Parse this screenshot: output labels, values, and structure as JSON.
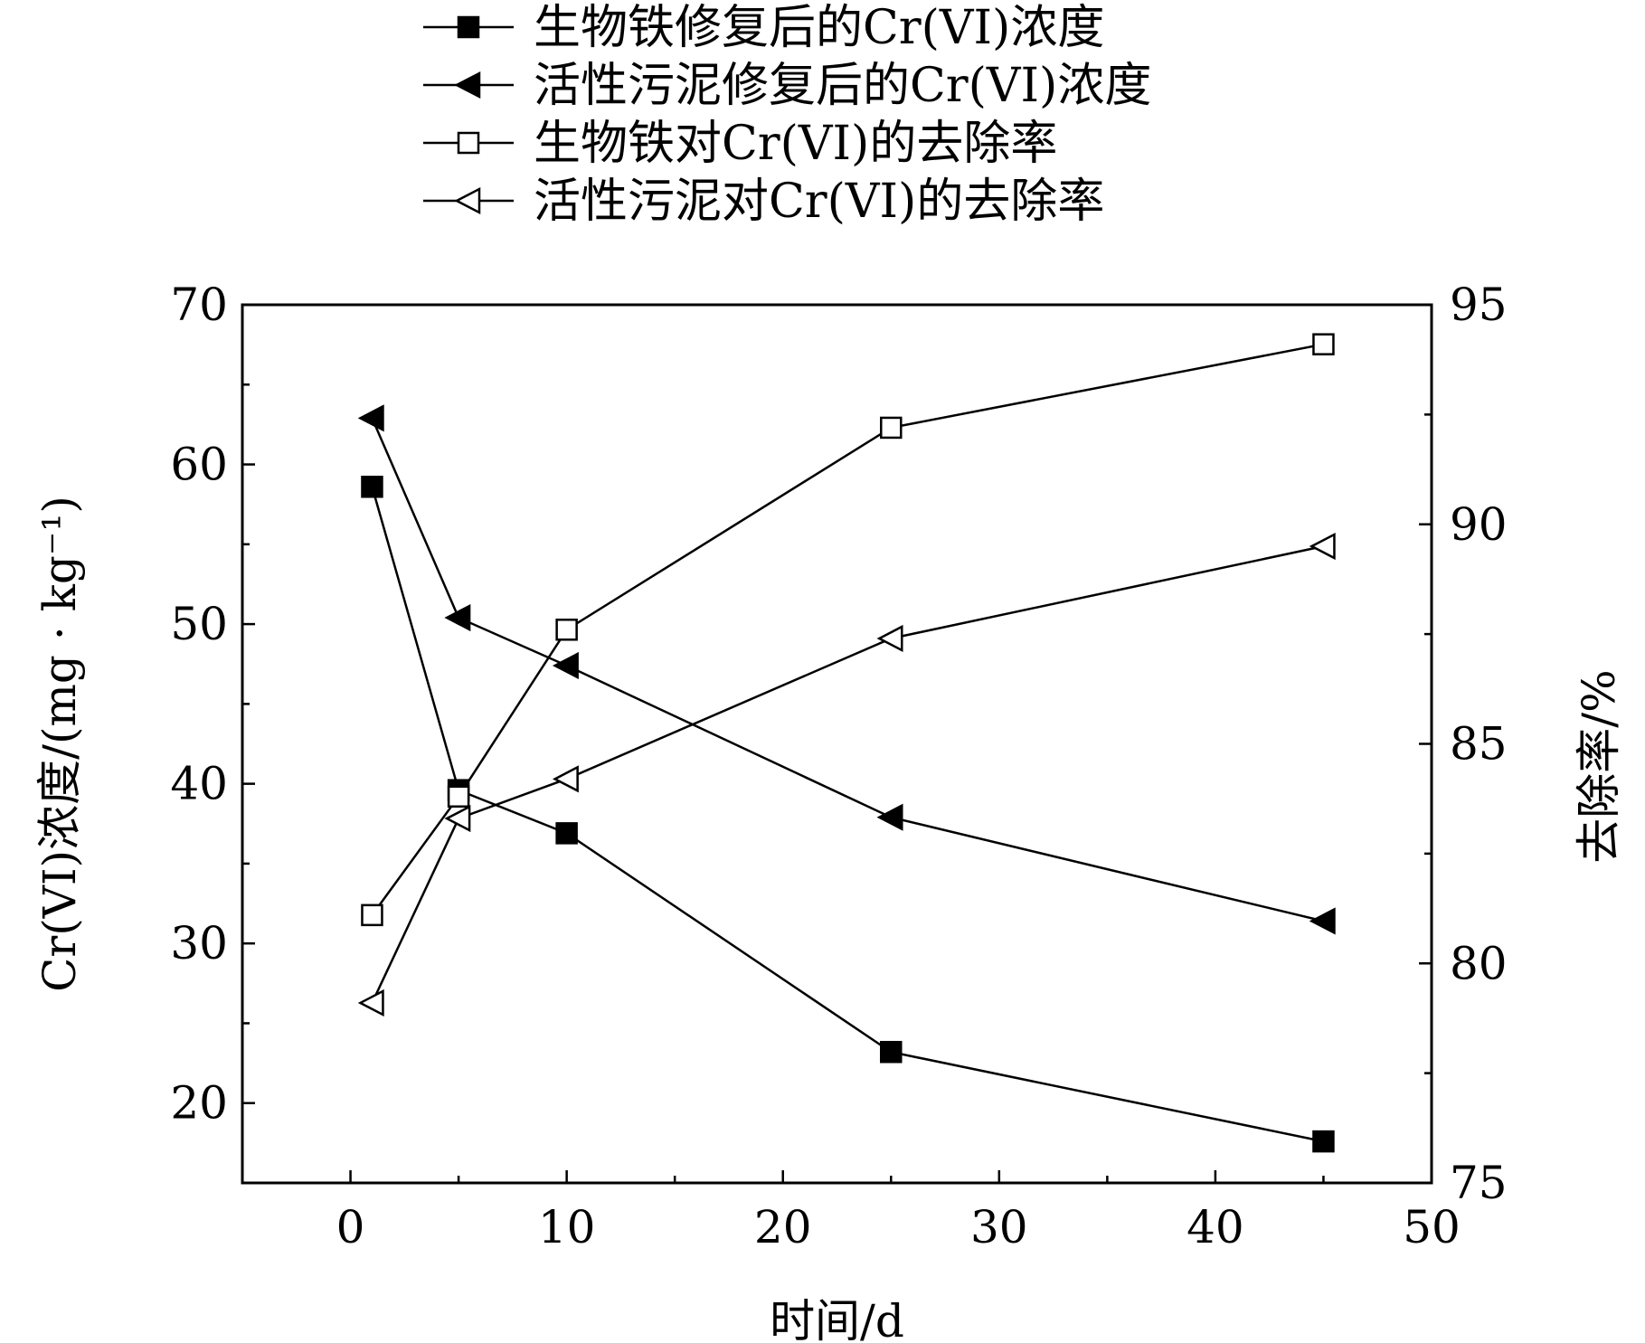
{
  "chart_data": {
    "type": "line",
    "title": "",
    "xlabel": "时间/d",
    "ylabel_left": "Cr(VI)浓度/(mg · kg⁻¹)",
    "ylabel_right": "去除率/%",
    "xlim": [
      -5,
      50
    ],
    "ylim_left": [
      15,
      70
    ],
    "ylim_right": [
      75,
      95
    ],
    "xticks": [
      0,
      10,
      20,
      30,
      40,
      50
    ],
    "yticks_left": [
      20,
      30,
      40,
      50,
      60,
      70
    ],
    "yticks_right": [
      75,
      80,
      85,
      90,
      95
    ],
    "grid": false,
    "legend_position": "top",
    "x": [
      1,
      5,
      10,
      25,
      45
    ],
    "series": [
      {
        "name": "生物铁修复后的Cr(VI)浓度",
        "axis": "left",
        "marker": "square-filled",
        "values": [
          58.6,
          39.6,
          36.9,
          23.2,
          17.6
        ]
      },
      {
        "name": "活性污泥修复后的Cr(VI)浓度",
        "axis": "left",
        "marker": "triangle-left-filled",
        "values": [
          62.9,
          50.4,
          47.4,
          37.9,
          31.4
        ]
      },
      {
        "name": "生物铁对Cr(VI)的去除率",
        "axis": "right",
        "marker": "square-open",
        "values": [
          81.1,
          83.8,
          87.6,
          92.2,
          94.1
        ]
      },
      {
        "name": "活性污泥对Cr(VI)的去除率",
        "axis": "right",
        "marker": "triangle-left-open",
        "values": [
          79.1,
          83.3,
          84.2,
          87.4,
          89.5
        ]
      }
    ]
  }
}
